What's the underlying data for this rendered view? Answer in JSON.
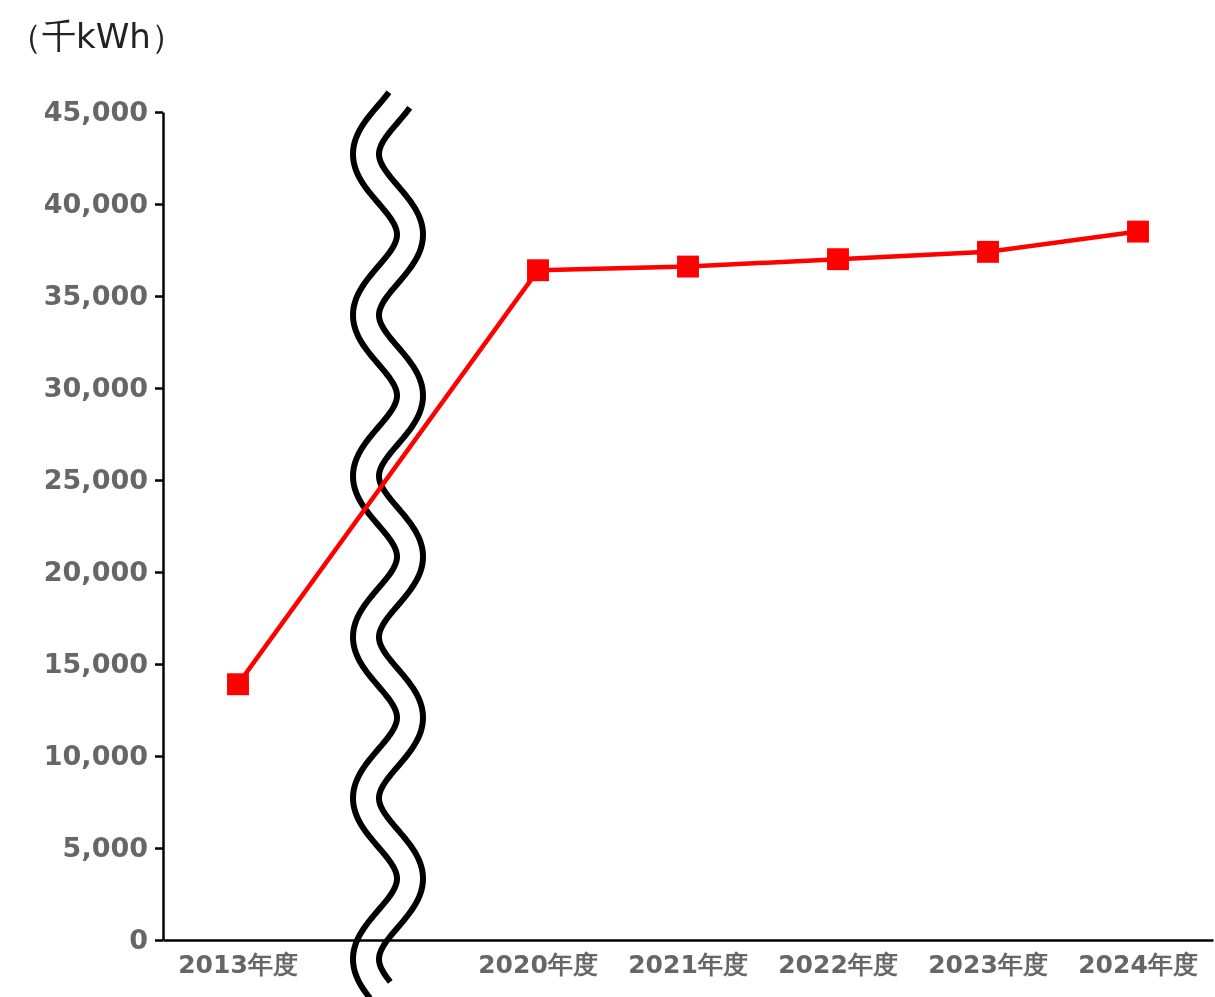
{
  "chart_data": {
    "type": "line",
    "ylabel": "（千kWh）",
    "categories": [
      "2013年度",
      null,
      "2020年度",
      "2021年度",
      "2022年度",
      "2023年度",
      "2024年度"
    ],
    "series": [
      {
        "color": "#ff0000",
        "values": [
          13900,
          null,
          36400,
          36600,
          37000,
          37400,
          38500
        ]
      }
    ],
    "ylim": [
      0,
      45000
    ],
    "yticks": [
      {
        "value": 0,
        "label": "0"
      },
      {
        "value": 5000,
        "label": "5,000"
      },
      {
        "value": 10000,
        "label": "10,000"
      },
      {
        "value": 15000,
        "label": "15,000"
      },
      {
        "value": 20000,
        "label": "20,000"
      },
      {
        "value": 25000,
        "label": "25,000"
      },
      {
        "value": 30000,
        "label": "30,000"
      },
      {
        "value": 35000,
        "label": "35,000"
      },
      {
        "value": 40000,
        "label": "40,000"
      },
      {
        "value": 45000,
        "label": "45,000"
      }
    ],
    "grid": false,
    "marker": "square",
    "line_style": "solid"
  }
}
